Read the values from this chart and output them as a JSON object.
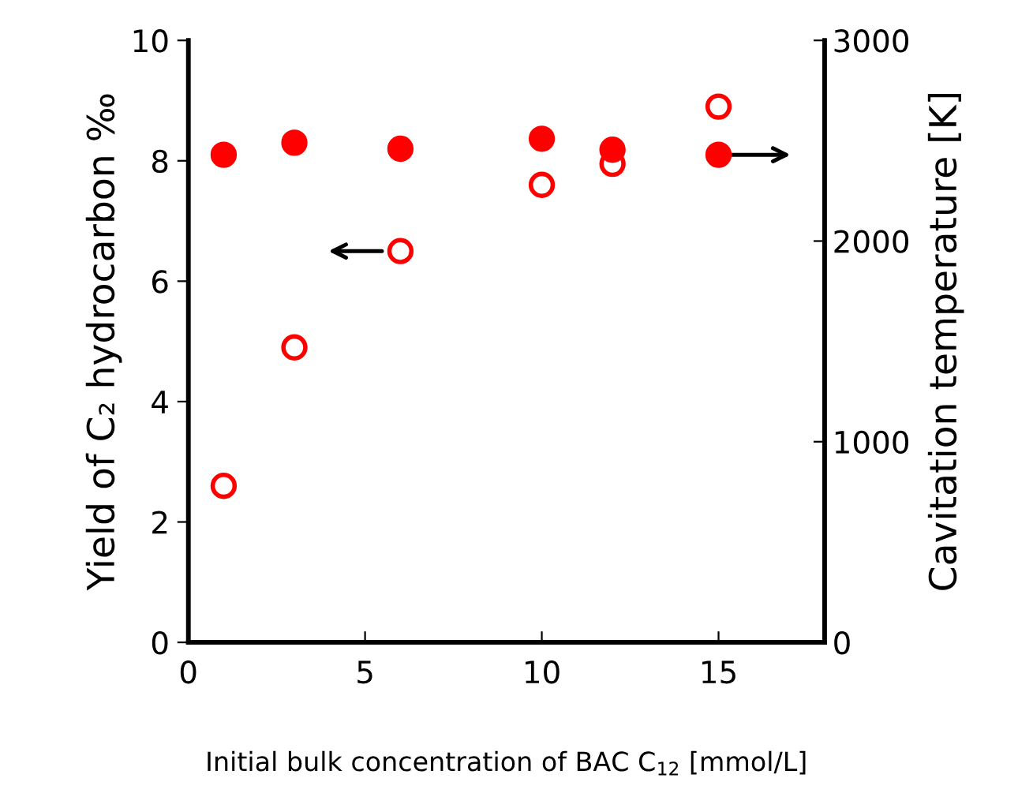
{
  "chart_data": {
    "type": "scatter",
    "xlabel": "Initial bulk concentration of BAC C$_{12}$ [mmol/L]",
    "ylabel": "Yield of C₂ hydrocarbon ‰",
    "y2label": "Cavitation temperature [K]",
    "x": [
      1,
      3,
      6,
      10,
      12,
      15
    ],
    "marker": "circle",
    "grid": false,
    "legend": false,
    "series": [
      {
        "color": "#ff0000",
        "values": [
          2.6,
          4.9,
          6.5,
          7.6,
          7.95,
          8.9
        ]
      },
      {
        "color": "#ff0000",
        "axis": "y2",
        "values": [
          2430,
          2490,
          2460,
          2510,
          2455,
          2430
        ]
      }
    ],
    "xlim": [
      0,
      18
    ],
    "xticks": [
      0,
      5,
      10,
      15
    ],
    "ylim": [
      0,
      10
    ],
    "yticks": [
      0,
      2,
      4,
      6,
      8,
      10
    ],
    "y2lim": [
      0,
      3000
    ],
    "y2ticks": [
      0,
      1000,
      2000,
      3000
    ]
  }
}
